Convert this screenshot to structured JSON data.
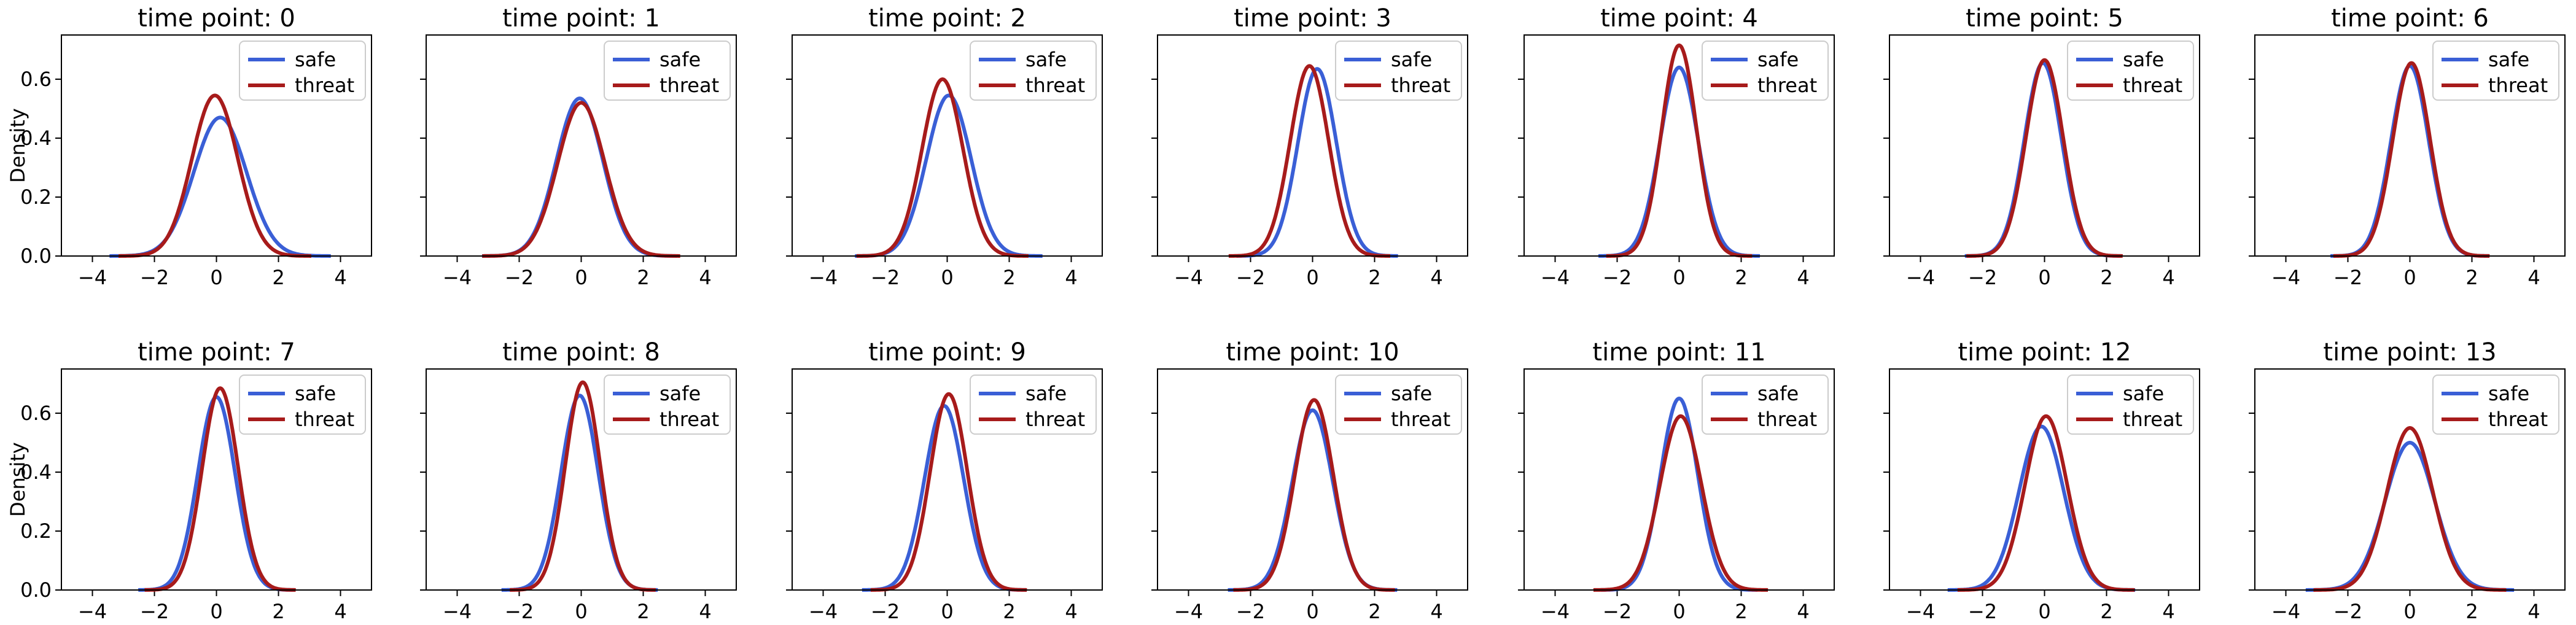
{
  "colors": {
    "safe": "#3a5fd6",
    "threat": "#a71b1b"
  },
  "chart_data": {
    "type": "line",
    "layout": "2x7 small multiples, shared x and y axes",
    "legend_position": "upper-right",
    "grid": false,
    "xlim": [
      -5,
      5
    ],
    "ylim": [
      0,
      0.75
    ],
    "xticks": [
      "−4",
      "−2",
      "0",
      "2",
      "4"
    ],
    "yticks": [
      "0.0",
      "0.2",
      "0.4",
      "0.6"
    ],
    "ylabel": "Density",
    "xlabel": "",
    "legend": [
      "safe",
      "threat"
    ],
    "panels": [
      {
        "title": "time point: 0",
        "safe": {
          "mu": 0.12,
          "sd": 0.85,
          "peak": 0.47
        },
        "threat": {
          "mu": -0.05,
          "sd": 0.74,
          "peak": 0.545
        }
      },
      {
        "title": "time point: 1",
        "safe": {
          "mu": -0.05,
          "sd": 0.75,
          "peak": 0.535
        },
        "threat": {
          "mu": 0.0,
          "sd": 0.76,
          "peak": 0.52
        }
      },
      {
        "title": "time point: 2",
        "safe": {
          "mu": 0.05,
          "sd": 0.72,
          "peak": 0.545
        },
        "threat": {
          "mu": -0.15,
          "sd": 0.66,
          "peak": 0.6
        }
      },
      {
        "title": "time point: 3",
        "safe": {
          "mu": 0.15,
          "sd": 0.62,
          "peak": 0.635
        },
        "threat": {
          "mu": -0.1,
          "sd": 0.62,
          "peak": 0.645
        }
      },
      {
        "title": "time point: 4",
        "safe": {
          "mu": 0.0,
          "sd": 0.62,
          "peak": 0.64
        },
        "threat": {
          "mu": 0.0,
          "sd": 0.56,
          "peak": 0.715
        }
      },
      {
        "title": "time point: 5",
        "safe": {
          "mu": -0.05,
          "sd": 0.6,
          "peak": 0.655
        },
        "threat": {
          "mu": 0.0,
          "sd": 0.6,
          "peak": 0.665
        }
      },
      {
        "title": "time point: 6",
        "safe": {
          "mu": 0.0,
          "sd": 0.61,
          "peak": 0.645
        },
        "threat": {
          "mu": 0.05,
          "sd": 0.6,
          "peak": 0.655
        }
      },
      {
        "title": "time point: 7",
        "safe": {
          "mu": 0.0,
          "sd": 0.6,
          "peak": 0.655
        },
        "threat": {
          "mu": 0.12,
          "sd": 0.58,
          "peak": 0.685
        }
      },
      {
        "title": "time point: 8",
        "safe": {
          "mu": -0.05,
          "sd": 0.6,
          "peak": 0.66
        },
        "threat": {
          "mu": 0.05,
          "sd": 0.56,
          "peak": 0.705
        }
      },
      {
        "title": "time point: 9",
        "safe": {
          "mu": -0.1,
          "sd": 0.63,
          "peak": 0.625
        },
        "threat": {
          "mu": 0.05,
          "sd": 0.6,
          "peak": 0.665
        }
      },
      {
        "title": "time point: 10",
        "safe": {
          "mu": 0.0,
          "sd": 0.65,
          "peak": 0.61
        },
        "threat": {
          "mu": 0.05,
          "sd": 0.62,
          "peak": 0.645
        }
      },
      {
        "title": "time point: 11",
        "safe": {
          "mu": 0.0,
          "sd": 0.6,
          "peak": 0.65
        },
        "threat": {
          "mu": 0.05,
          "sd": 0.67,
          "peak": 0.59
        }
      },
      {
        "title": "time point: 12",
        "safe": {
          "mu": -0.1,
          "sd": 0.72,
          "peak": 0.555
        },
        "threat": {
          "mu": 0.05,
          "sd": 0.68,
          "peak": 0.59
        }
      },
      {
        "title": "time point: 13",
        "safe": {
          "mu": 0.0,
          "sd": 0.8,
          "peak": 0.5
        },
        "threat": {
          "mu": 0.0,
          "sd": 0.74,
          "peak": 0.55
        }
      }
    ]
  }
}
